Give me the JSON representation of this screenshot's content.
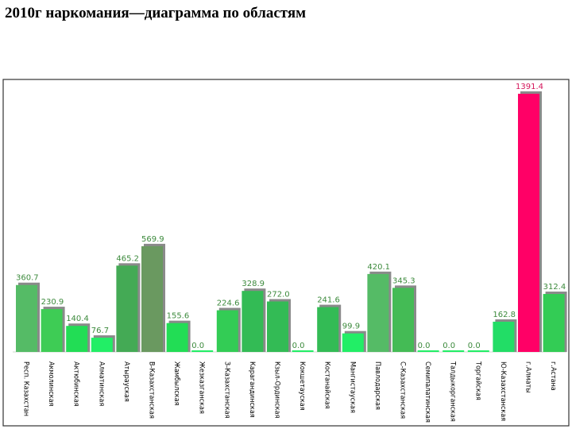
{
  "slide": {
    "title": "2010г наркомания—диаграмма  по областям"
  },
  "colors": {
    "frame": "#333333",
    "shadow": "#8a8a8a",
    "value_text": "#3c8a3c",
    "highlight": "#ff0066",
    "highlight_text": "#d4145a"
  },
  "chart_data": {
    "type": "bar",
    "title": "",
    "xlabel": "",
    "ylabel": "",
    "ylim": [
      0,
      1391.4
    ],
    "grid": false,
    "categories": [
      "Респ. Казахстан",
      "Акмолинская",
      "Актюбинская",
      "Алматинская",
      "Атырауская",
      "В-Казахстанская",
      "Жамбылская",
      "Жезказганская",
      "З-Казахстанская",
      "Карагандинская",
      "Кзыл-Ординская",
      "Кокшетауская",
      "Костанайская",
      "Мангистауская",
      "Павлодарская",
      "С-Казахстанская",
      "Семипалатинская",
      "Талдыкорганская",
      "Торгайская",
      "Ю-Казахстанская",
      "г.Алматы",
      "г.Астана"
    ],
    "values": [
      360.7,
      230.9,
      140.4,
      76.7,
      465.2,
      569.9,
      155.6,
      0.0,
      224.6,
      328.9,
      272.0,
      0.0,
      241.6,
      99.9,
      420.1,
      345.3,
      0.0,
      0.0,
      0.0,
      162.8,
      1391.4,
      312.4
    ],
    "value_labels": [
      "360.7",
      "230.9",
      "140.4",
      "76.7",
      "465.2",
      "569.9",
      "155.6",
      "0.0",
      "224.6",
      "328.9",
      "272.0",
      "0.0",
      "241.6",
      "99.9",
      "420.1",
      "345.3",
      "0.0",
      "0.0",
      "0.0",
      "162.8",
      "1391.4",
      "312.4"
    ],
    "bar_colors": [
      "#55bb66",
      "#3ecc55",
      "#22dd55",
      "#22ee66",
      "#44aa55",
      "#6a9960",
      "#22dd55",
      "#22ee66",
      "#33cc55",
      "#33bb55",
      "#33bb55",
      "#22ee66",
      "#33bb55",
      "#22ee66",
      "#55bb66",
      "#44bb55",
      "#22ee66",
      "#22ee66",
      "#22ee66",
      "#22dd66",
      "#ff0066",
      "#33cc55"
    ]
  }
}
